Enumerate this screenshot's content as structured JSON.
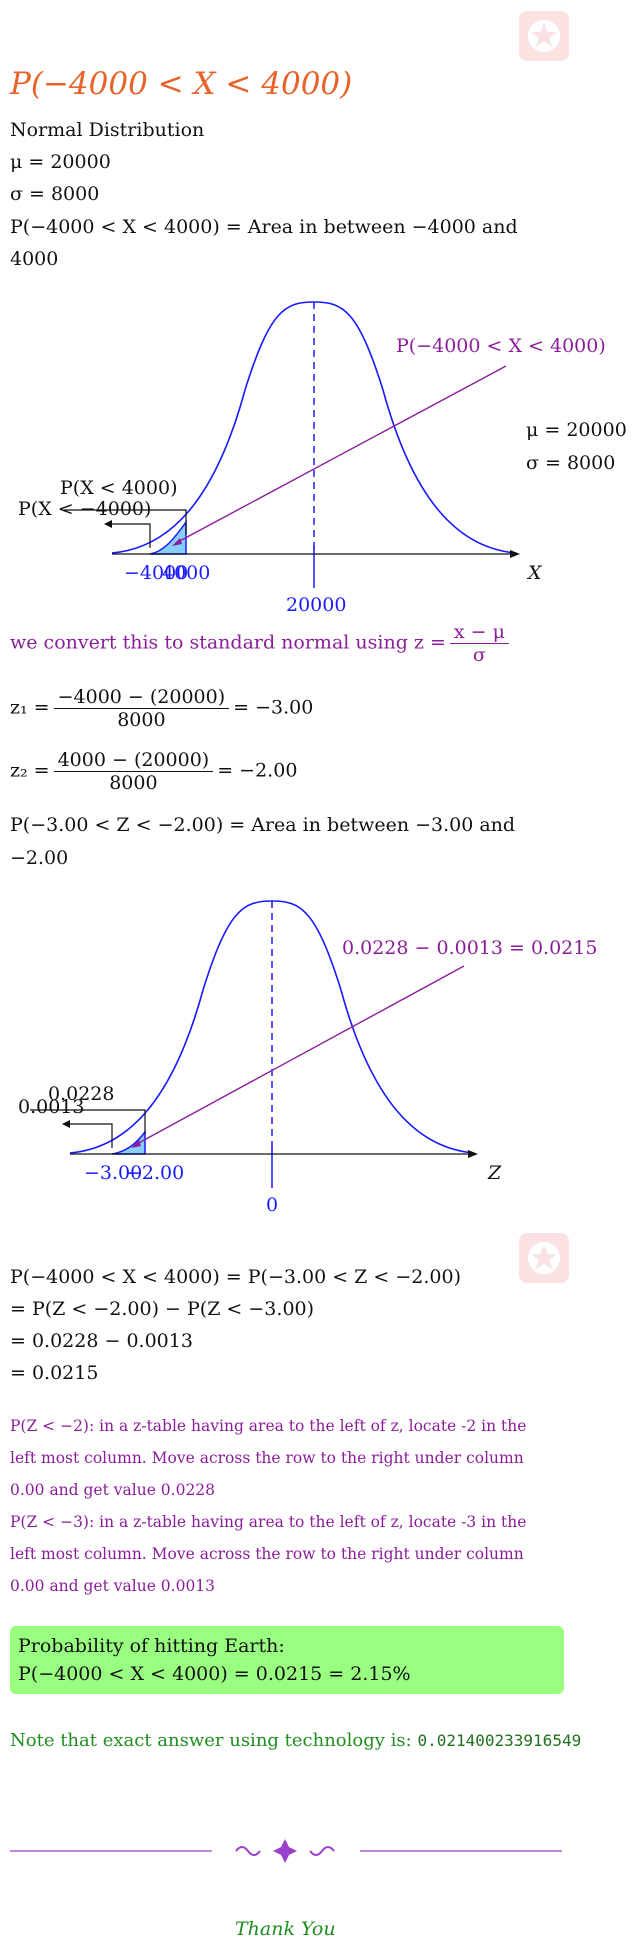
{
  "title": "P(−4000 < X < 4000)",
  "intro": {
    "dist": "Normal Distribution",
    "mu": "μ = 20000",
    "sigma": "σ = 8000",
    "area_line1": "P(−4000 < X < 4000) = Area in between −4000 and",
    "area_line2": "4000"
  },
  "graph1": {
    "top_label": "P(−4000 < X < 4000)",
    "mu": "μ = 20000",
    "sigma": "σ = 8000",
    "left_label_1": "P(X < 4000)",
    "left_label_2": "P(X < −4000)",
    "tick_a": "−4000",
    "tick_b": "4000",
    "center": "20000",
    "axis": "X"
  },
  "convert": {
    "text": "we convert this to standard normal using",
    "lhs": "z =",
    "num": "x − μ",
    "den": "σ"
  },
  "z1": {
    "lhs": "z₁ =",
    "num": "−4000 − (20000)",
    "den": "8000",
    "rhs": "= −3.00"
  },
  "z2": {
    "lhs": "z₂ =",
    "num": "4000 − (20000)",
    "den": "8000",
    "rhs": "= −2.00"
  },
  "area2": {
    "line1": "P(−3.00 < Z < −2.00) = Area in between −3.00 and",
    "line2": "−2.00"
  },
  "graph2": {
    "top_label": "0.0228 − 0.0013 = 0.0215",
    "left_label_1": "0.0228",
    "left_label_2": "0.0013",
    "tick_a": "−3.00",
    "tick_b": "−2.00",
    "center": "0",
    "axis": "Z"
  },
  "steps": [
    "P(−4000 < X < 4000) = P(−3.00 < Z < −2.00)",
    "= P(Z < −2.00) − P(Z < −3.00)",
    "= 0.0228 − 0.0013",
    "= 0.0215"
  ],
  "notes": [
    "P(Z < −2): in a z-table having area to the left of z, locate -2 in the",
    "left most column. Move across the row to the right under column",
    "0.00 and get value 0.0228",
    "P(Z < −3): in a z-table having area to the left of z, locate -3 in the",
    "left most column. Move across the row to the right under column",
    "0.00 and get value 0.0013"
  ],
  "answer": {
    "line1": "Probability of hitting Earth:",
    "line2": "P(−4000 < X < 4000) = 0.0215 = 2.15%"
  },
  "tech_note": {
    "text": "Note that exact answer using technology is:",
    "value": "0.021400233916549"
  },
  "closing": "Thank You",
  "colors": {
    "curve": "#1a1aff",
    "shade": "#87cefa",
    "purple": "#8b1d9a",
    "answer_bg": "#98ff80",
    "title": "#e8632a"
  }
}
